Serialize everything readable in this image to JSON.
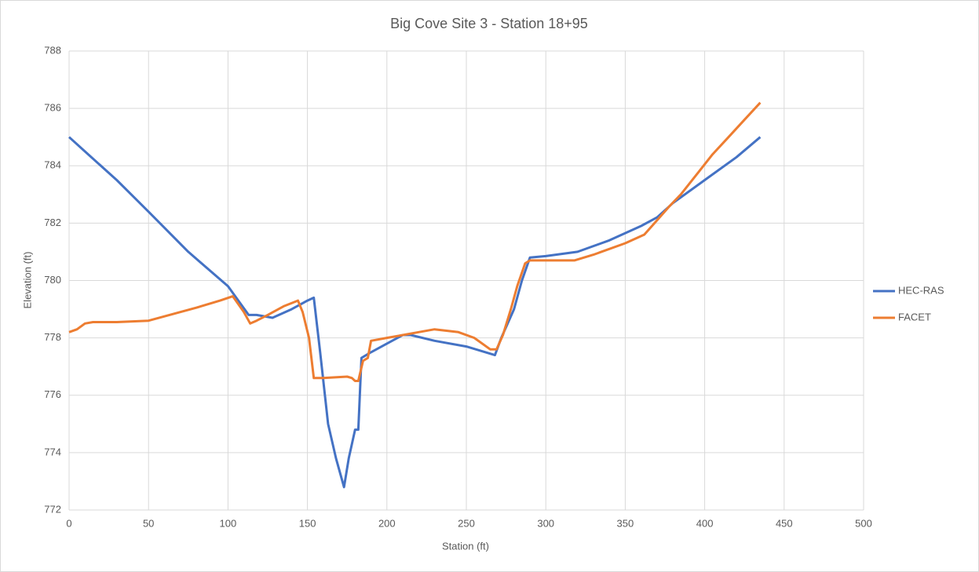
{
  "chart_data": {
    "type": "line",
    "title": "Big Cove Site 3 - Station 18+95",
    "x_label": "Station (ft)",
    "y_label": "Elevation (ft)",
    "xlim": [
      0,
      500
    ],
    "xticks": [
      0,
      50,
      100,
      150,
      200,
      250,
      300,
      350,
      400,
      450,
      500
    ],
    "ylim": [
      772,
      788
    ],
    "yticks": [
      772,
      774,
      776,
      778,
      780,
      782,
      784,
      786,
      788
    ],
    "grid": true,
    "legend": "right",
    "series": [
      {
        "name": "HEC-RAS",
        "color": "#4472c4",
        "x": [
          0,
          10,
          30,
          50,
          75,
          100,
          113,
          118,
          128,
          140,
          150,
          154,
          158,
          163,
          168,
          173,
          176,
          180,
          182,
          184,
          190,
          200,
          210,
          215,
          230,
          250,
          268,
          272,
          280,
          285,
          290,
          300,
          320,
          340,
          360,
          370,
          380,
          400,
          420,
          435
        ],
        "values": [
          785,
          784.5,
          783.5,
          782.4,
          781,
          779.8,
          778.8,
          778.8,
          778.7,
          779,
          779.3,
          779.4,
          777.5,
          775,
          773.8,
          772.8,
          773.8,
          774.8,
          774.8,
          777.3,
          777.5,
          777.8,
          778.1,
          778.1,
          777.9,
          777.7,
          777.4,
          778,
          779,
          780,
          780.8,
          780.85,
          781,
          781.4,
          781.9,
          782.2,
          782.7,
          783.5,
          784.3,
          785
        ]
      },
      {
        "name": "FACET",
        "color": "#ed7d31",
        "x": [
          0,
          5,
          10,
          15,
          30,
          50,
          60,
          80,
          95,
          103,
          110,
          114,
          118,
          125,
          135,
          144,
          147,
          151,
          154,
          160,
          175,
          178,
          180,
          182,
          185,
          188,
          190,
          200,
          210,
          220,
          230,
          245,
          255,
          265,
          269,
          273,
          278,
          282,
          287,
          290,
          300,
          318,
          330,
          350,
          362,
          370,
          378,
          385,
          395,
          405,
          415,
          425,
          435
        ],
        "values": [
          778.2,
          778.3,
          778.5,
          778.55,
          778.55,
          778.6,
          778.75,
          779.05,
          779.3,
          779.45,
          778.9,
          778.5,
          778.6,
          778.8,
          779.1,
          779.3,
          778.9,
          778,
          776.6,
          776.6,
          776.65,
          776.6,
          776.5,
          776.5,
          777.2,
          777.3,
          777.9,
          778,
          778.1,
          778.2,
          778.3,
          778.2,
          778,
          777.6,
          777.6,
          778.1,
          779,
          779.8,
          780.6,
          780.7,
          780.7,
          780.7,
          780.9,
          781.3,
          781.6,
          782.1,
          782.6,
          783,
          783.7,
          784.4,
          785,
          785.6,
          786.2
        ]
      }
    ]
  }
}
